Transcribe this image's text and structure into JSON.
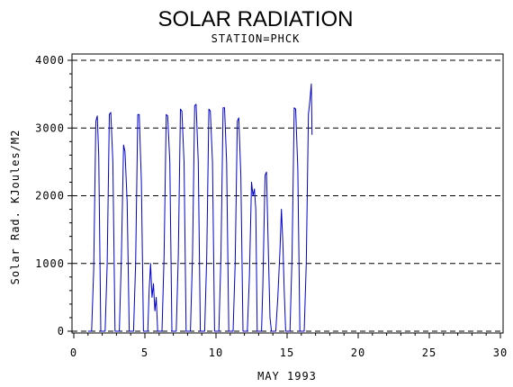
{
  "chart_data": {
    "type": "line",
    "title": "SOLAR RADIATION",
    "subtitle": "STATION=PHCK",
    "xlabel": "MAY 1993",
    "ylabel": "Solar Rad. KJoules/M2",
    "xlim": [
      0,
      30
    ],
    "ylim": [
      0,
      4000
    ],
    "xticks": [
      0,
      5,
      10,
      15,
      20,
      25,
      30
    ],
    "yticks": [
      0,
      1000,
      2000,
      3000,
      4000
    ],
    "grid": "horizontal dashed",
    "line_color": "#0000cc",
    "series": [
      {
        "values": [
          [
            1.0,
            0
          ],
          [
            1.25,
            0
          ],
          [
            1.4,
            900
          ],
          [
            1.55,
            3100
          ],
          [
            1.65,
            3180
          ],
          [
            1.75,
            2600
          ],
          [
            1.9,
            0
          ],
          [
            2.2,
            0
          ],
          [
            2.35,
            1000
          ],
          [
            2.5,
            3200
          ],
          [
            2.6,
            3230
          ],
          [
            2.75,
            2500
          ],
          [
            2.9,
            0
          ],
          [
            3.2,
            0
          ],
          [
            3.35,
            1100
          ],
          [
            3.5,
            2750
          ],
          [
            3.6,
            2650
          ],
          [
            3.75,
            1900
          ],
          [
            3.9,
            0
          ],
          [
            4.2,
            0
          ],
          [
            4.35,
            1000
          ],
          [
            4.5,
            3200
          ],
          [
            4.6,
            3200
          ],
          [
            4.75,
            2200
          ],
          [
            4.9,
            0
          ],
          [
            5.2,
            0
          ],
          [
            5.3,
            600
          ],
          [
            5.4,
            1000
          ],
          [
            5.5,
            500
          ],
          [
            5.6,
            700
          ],
          [
            5.7,
            300
          ],
          [
            5.8,
            500
          ],
          [
            5.9,
            0
          ],
          [
            6.2,
            0
          ],
          [
            6.35,
            1100
          ],
          [
            6.5,
            3200
          ],
          [
            6.6,
            3180
          ],
          [
            6.75,
            2500
          ],
          [
            6.9,
            0
          ],
          [
            7.2,
            0
          ],
          [
            7.35,
            1100
          ],
          [
            7.5,
            3280
          ],
          [
            7.6,
            3250
          ],
          [
            7.75,
            2500
          ],
          [
            7.9,
            0
          ],
          [
            8.2,
            0
          ],
          [
            8.35,
            1100
          ],
          [
            8.5,
            3330
          ],
          [
            8.6,
            3350
          ],
          [
            8.75,
            2500
          ],
          [
            8.9,
            0
          ],
          [
            9.2,
            0
          ],
          [
            9.35,
            1100
          ],
          [
            9.5,
            3280
          ],
          [
            9.6,
            3250
          ],
          [
            9.75,
            2500
          ],
          [
            9.9,
            0
          ],
          [
            10.2,
            0
          ],
          [
            10.35,
            1100
          ],
          [
            10.5,
            3300
          ],
          [
            10.6,
            3300
          ],
          [
            10.75,
            2500
          ],
          [
            10.9,
            0
          ],
          [
            11.2,
            0
          ],
          [
            11.35,
            1000
          ],
          [
            11.5,
            3100
          ],
          [
            11.6,
            3150
          ],
          [
            11.75,
            2300
          ],
          [
            11.9,
            0
          ],
          [
            12.2,
            0
          ],
          [
            12.35,
            800
          ],
          [
            12.5,
            2200
          ],
          [
            12.6,
            2000
          ],
          [
            12.7,
            2100
          ],
          [
            12.8,
            1800
          ],
          [
            12.9,
            0
          ],
          [
            13.2,
            0
          ],
          [
            13.3,
            700
          ],
          [
            13.45,
            2300
          ],
          [
            13.55,
            2350
          ],
          [
            13.7,
            1000
          ],
          [
            13.8,
            200
          ],
          [
            13.9,
            0
          ],
          [
            14.2,
            0
          ],
          [
            14.35,
            500
          ],
          [
            14.5,
            1200
          ],
          [
            14.6,
            1800
          ],
          [
            14.7,
            1300
          ],
          [
            14.8,
            600
          ],
          [
            14.9,
            0
          ],
          [
            15.2,
            0
          ],
          [
            15.35,
            1100
          ],
          [
            15.5,
            3300
          ],
          [
            15.6,
            3280
          ],
          [
            15.75,
            2400
          ],
          [
            15.9,
            0
          ],
          [
            16.2,
            0
          ],
          [
            16.35,
            1000
          ],
          [
            16.5,
            3200
          ],
          [
            16.6,
            3400
          ],
          [
            16.7,
            3650
          ],
          [
            16.75,
            2900
          ]
        ]
      }
    ]
  }
}
